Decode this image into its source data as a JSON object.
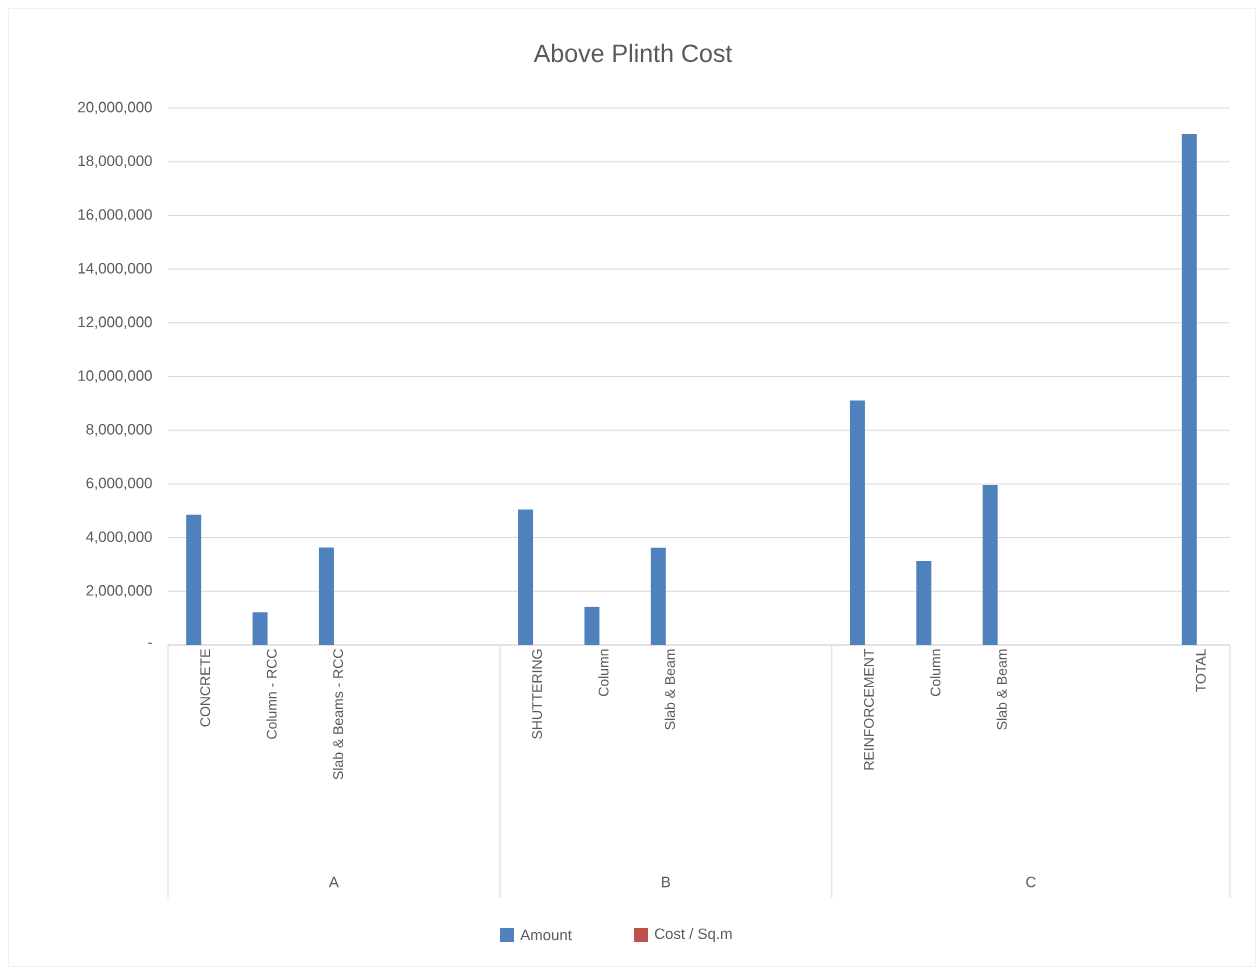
{
  "chart_data": {
    "type": "bar",
    "title": "Above Plinth Cost",
    "categories": [
      "CONCRETE",
      "Column - RCC",
      "Slab & Beams - RCC",
      null,
      null,
      "SHUTTERING",
      "Column",
      "Slab & Beam",
      null,
      null,
      "REINFORCEMENT",
      "Column",
      "Slab & Beam",
      null,
      null,
      "TOTAL"
    ],
    "series": [
      {
        "name": "Amount",
        "color": "#4f81bd",
        "values": [
          4850000,
          1220000,
          3630000,
          null,
          null,
          5050000,
          1420000,
          3620000,
          null,
          null,
          9110000,
          3130000,
          5960000,
          null,
          null,
          19030000
        ]
      },
      {
        "name": "Cost / Sq.m",
        "color": "#c0504d",
        "values": [
          null,
          null,
          null,
          null,
          null,
          null,
          null,
          null,
          null,
          null,
          null,
          null,
          null,
          null,
          null,
          null
        ]
      }
    ],
    "ylim": [
      0,
      20000000
    ],
    "yticks": [
      {
        "value": 0,
        "label": "-"
      },
      {
        "value": 2000000,
        "label": "2,000,000"
      },
      {
        "value": 4000000,
        "label": "4,000,000"
      },
      {
        "value": 6000000,
        "label": "6,000,000"
      },
      {
        "value": 8000000,
        "label": "8,000,000"
      },
      {
        "value": 10000000,
        "label": "10,000,000"
      },
      {
        "value": 12000000,
        "label": "12,000,000"
      },
      {
        "value": 14000000,
        "label": "14,000,000"
      },
      {
        "value": 16000000,
        "label": "16,000,000"
      },
      {
        "value": 18000000,
        "label": "18,000,000"
      },
      {
        "value": 20000000,
        "label": "20,000,000"
      }
    ],
    "annotations": [
      "A",
      "B",
      "C"
    ],
    "grid": "y",
    "legend": "bottom"
  }
}
